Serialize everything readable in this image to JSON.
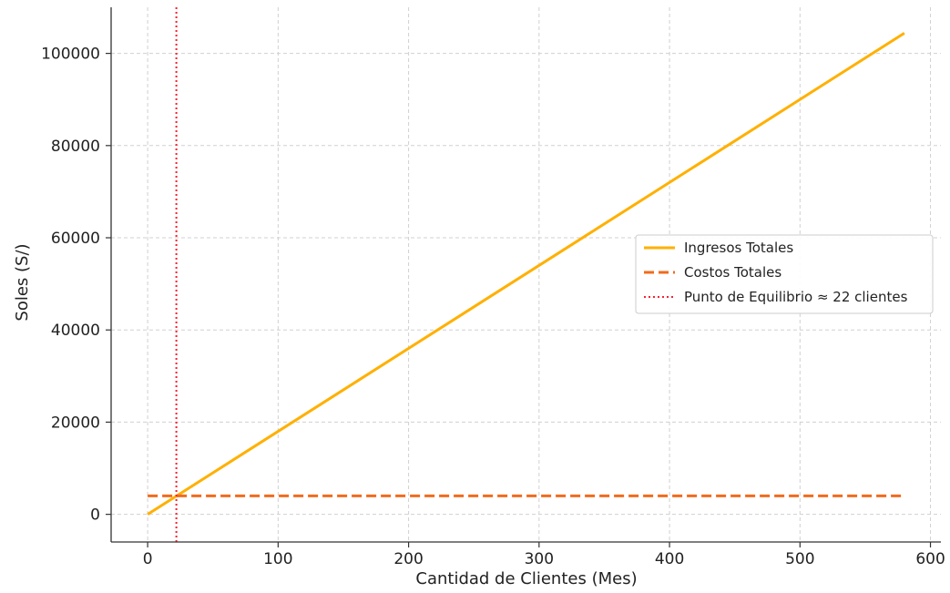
{
  "chart_data": {
    "type": "line",
    "title": "",
    "xlabel": "Cantidad de Clientes (Mes)",
    "ylabel": "Soles (S/)",
    "xlim": [
      -28,
      608
    ],
    "ylim": [
      -6000,
      110000
    ],
    "xticks": [
      0,
      100,
      200,
      300,
      400,
      500,
      600
    ],
    "yticks": [
      0,
      20000,
      40000,
      60000,
      80000,
      100000
    ],
    "grid": true,
    "legend_position": "center-right",
    "series": [
      {
        "name": "Ingresos Totales",
        "style": "solid",
        "color": "#FFB000",
        "x": [
          0,
          580
        ],
        "y": [
          0,
          104400
        ]
      },
      {
        "name": "Costos Totales",
        "style": "dashed",
        "color": "#F26B1D",
        "x": [
          0,
          580
        ],
        "y": [
          4000,
          4000
        ]
      }
    ],
    "vlines": [
      {
        "name": "Punto de Equilibrio ≈ 22 clientes",
        "style": "dotted",
        "color": "#F8232F",
        "x": 22
      }
    ]
  }
}
